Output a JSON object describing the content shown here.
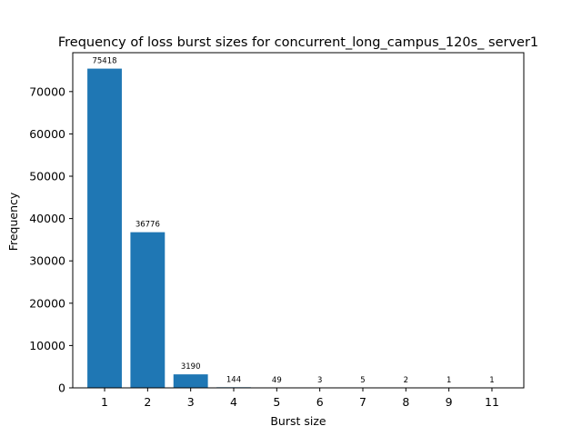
{
  "chart_data": {
    "type": "bar",
    "title": "Frequency of loss burst sizes for concurrent_long_campus_120s_ server1",
    "xlabel": "Burst size",
    "ylabel": "Frequency",
    "categories": [
      "1",
      "2",
      "3",
      "4",
      "5",
      "6",
      "7",
      "8",
      "9",
      "11"
    ],
    "values": [
      75418,
      36776,
      3190,
      144,
      49,
      3,
      5,
      2,
      1,
      1
    ],
    "data_labels": [
      "75418",
      "36776",
      "3190",
      "144",
      "49",
      "3",
      "5",
      "2",
      "1",
      "1"
    ],
    "ylim": [
      0,
      79189
    ],
    "yticks": [
      0,
      10000,
      20000,
      30000,
      40000,
      50000,
      60000,
      70000
    ],
    "ytick_labels": [
      "0",
      "10000",
      "20000",
      "30000",
      "40000",
      "50000",
      "60000",
      "70000"
    ],
    "bar_color": "#1f77b4",
    "grid": false,
    "legend": false
  }
}
